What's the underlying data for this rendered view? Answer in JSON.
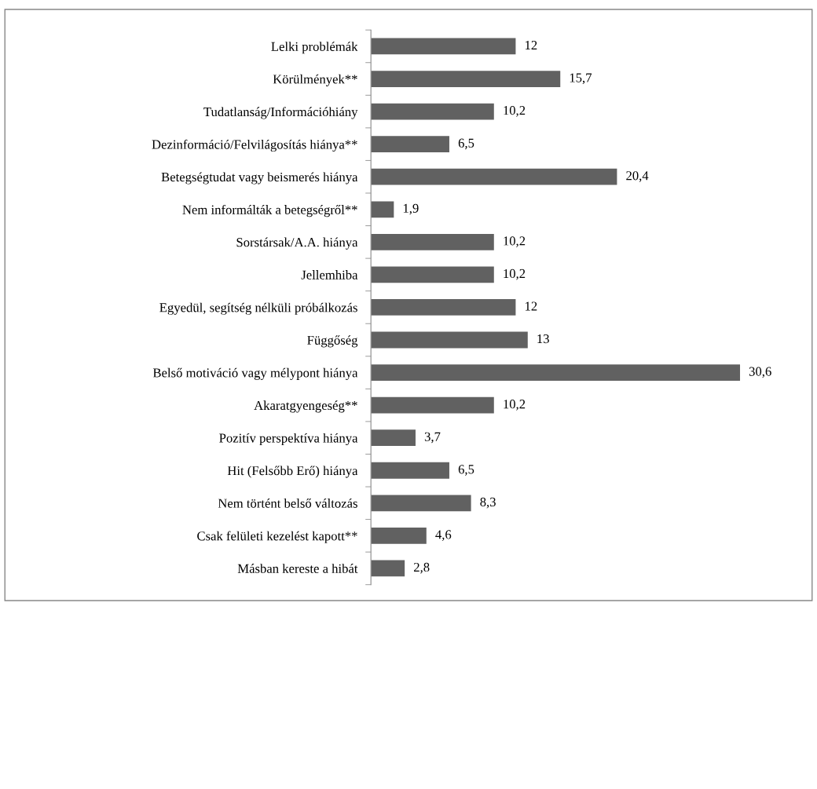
{
  "chart_data": {
    "type": "bar",
    "orientation": "horizontal",
    "value_labels": [
      "12",
      "15,7",
      "10,2",
      "6,5",
      "20,4",
      "1,9",
      "10,2",
      "10,2",
      "12",
      "13",
      "30,6",
      "10,2",
      "3,7",
      "6,5",
      "8,3",
      "4,6",
      "2,8"
    ],
    "grid": false,
    "legend": false,
    "tick_labels": "y",
    "color": "#616161",
    "categories": [
      "Lelki problémák",
      "Körülmények**",
      "Tudatlanság/Információhiány",
      "Dezinformáció/Felvilágosítás hiánya**",
      "Betegségtudat vagy beismerés hiánya",
      "Nem informálták a betegségről**",
      "Sorstársak/A.A. hiánya",
      "Jellemhiba",
      "Egyedül, segítség nélküli próbálkozás",
      "Függőség",
      "Belső motiváció vagy mélypont hiánya",
      "Akaratgyengeség**",
      "Pozitív perspektíva hiánya",
      "Hit (Felsőbb Erő) hiánya",
      "Nem történt belső változás",
      "Csak felületi kezelést kapott**",
      "Másban kereste a hibát"
    ],
    "values": [
      12,
      15.7,
      10.2,
      6.5,
      20.4,
      1.9,
      10.2,
      10.2,
      12,
      13,
      30.6,
      10.2,
      3.7,
      6.5,
      8.3,
      4.6,
      2.8
    ]
  }
}
